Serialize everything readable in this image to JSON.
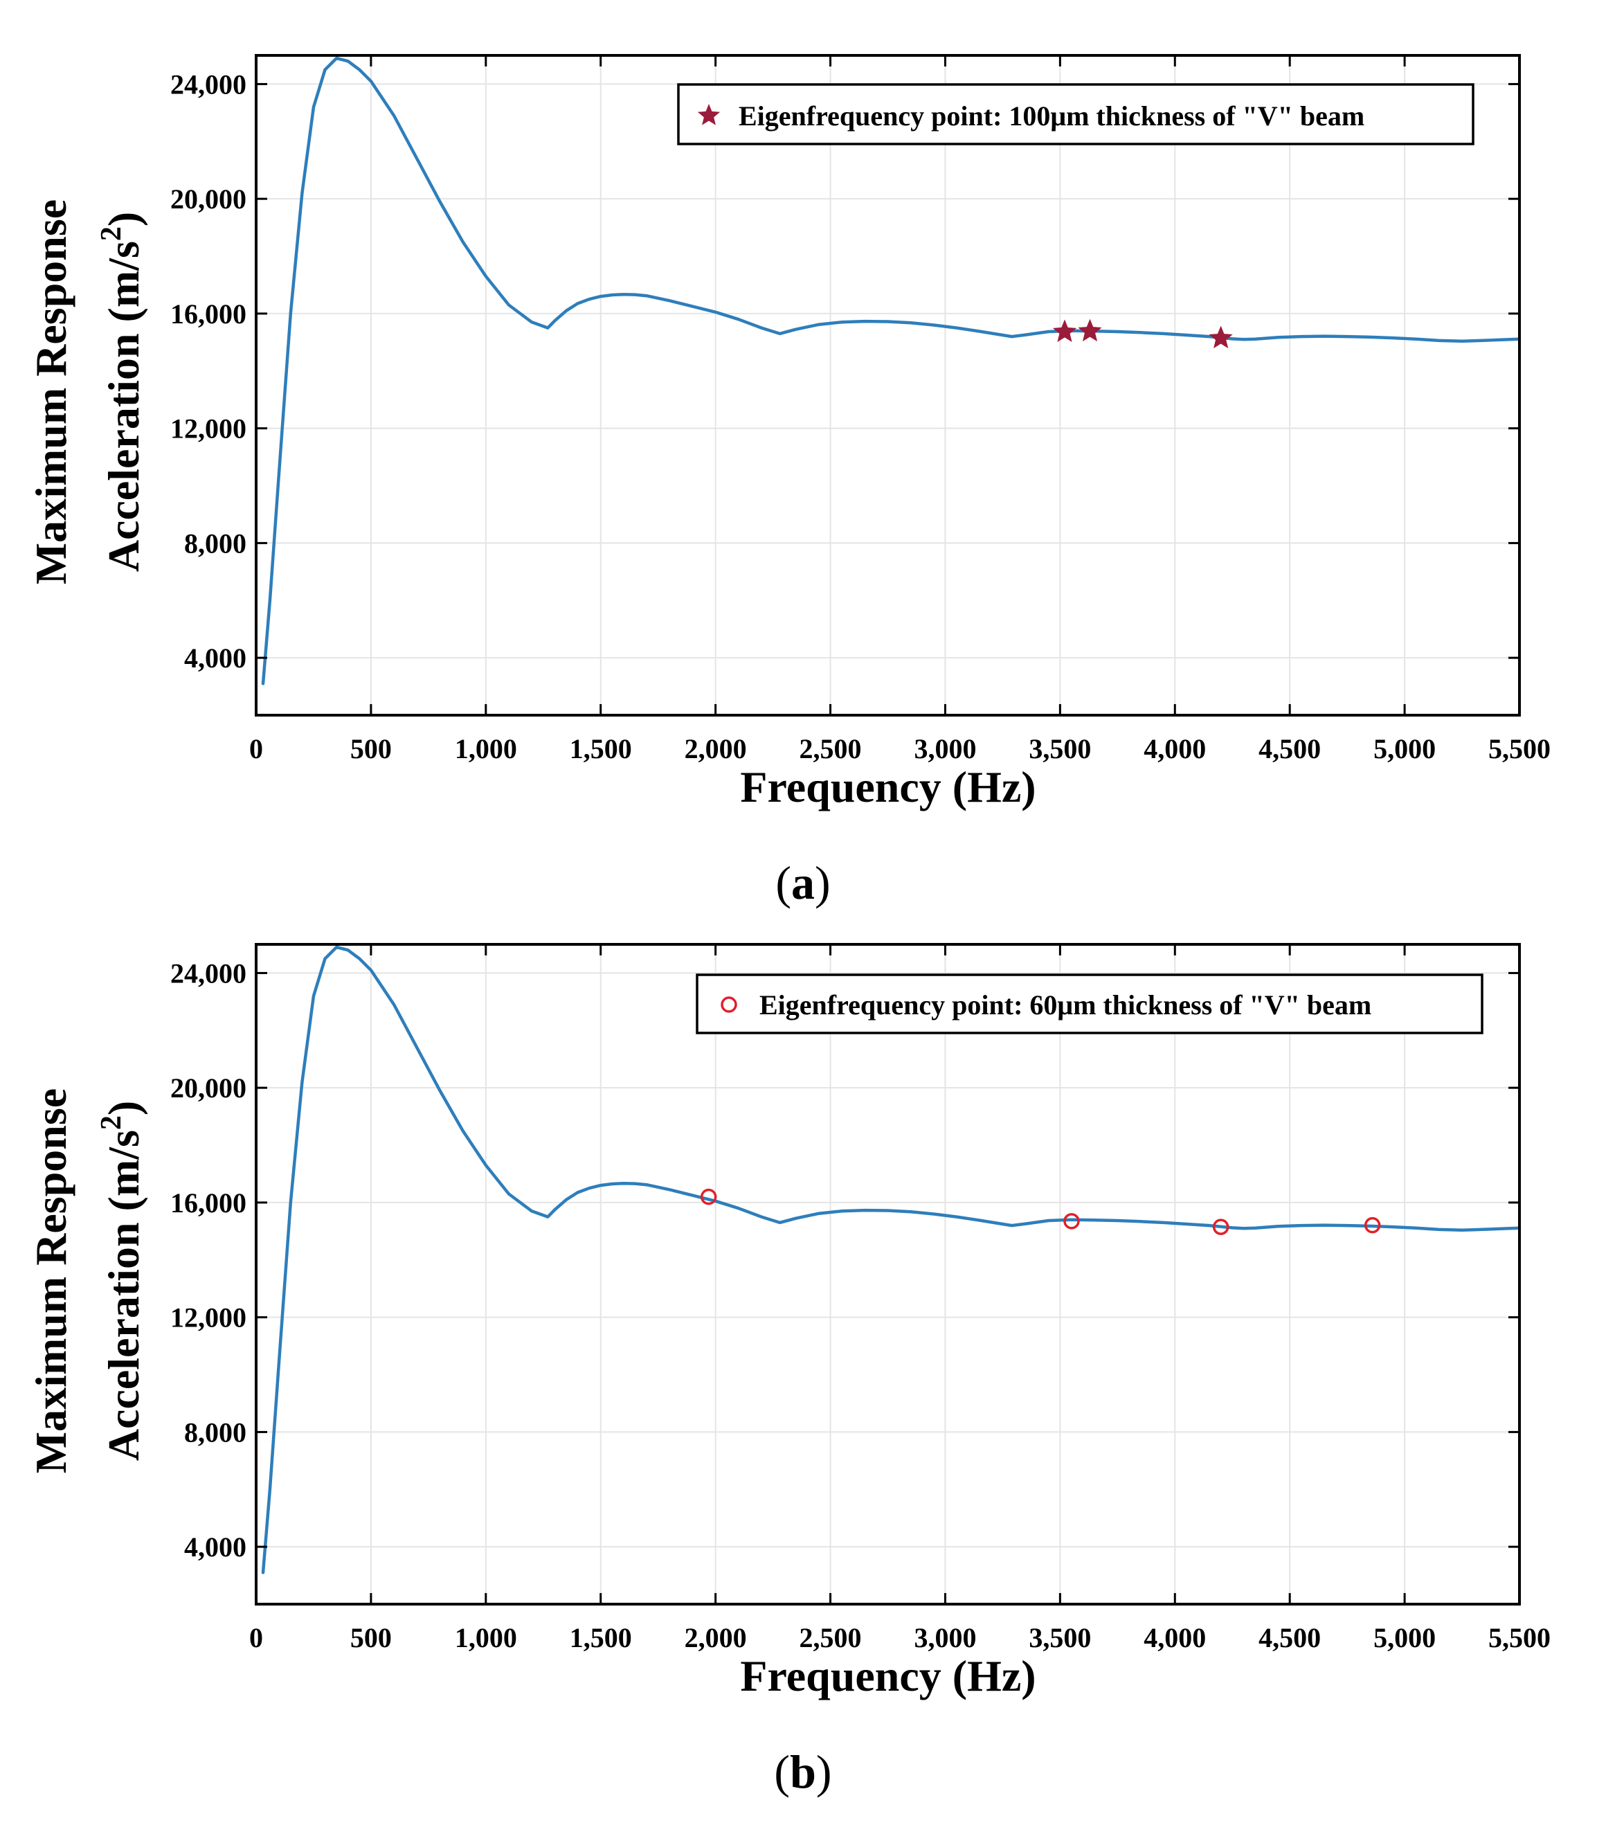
{
  "figure": {
    "colors": {
      "line": "#2E7EBB",
      "star": "#9B1B3A",
      "circle": "#E0202A",
      "grid": "#E4E4E4",
      "axis": "#000000"
    }
  },
  "chart_data": [
    {
      "type": "line",
      "panel_label_open": "(",
      "panel_label_letter": "a",
      "panel_label_close": ")",
      "xlabel": "Frequency (Hz)",
      "ylabel_line1": "Maximum Response",
      "ylabel_line2": "Acceleration (m/s",
      "ylabel_sup": "2",
      "ylabel_close": ")",
      "xlim": [
        0,
        5500
      ],
      "ylim": [
        2000,
        25000
      ],
      "grid": true,
      "legend_position": "top-right",
      "xticks": [
        0,
        500,
        1000,
        1500,
        2000,
        2500,
        3000,
        3500,
        4000,
        4500,
        5000,
        5500
      ],
      "xtick_labels": [
        "0",
        "500",
        "1,000",
        "1,500",
        "2,000",
        "2,500",
        "3,000",
        "3,500",
        "4,000",
        "4,500",
        "5,000",
        "5,500"
      ],
      "yticks": [
        4000,
        8000,
        12000,
        16000,
        20000,
        24000
      ],
      "ytick_labels": [
        "4,000",
        "8,000",
        "12,000",
        "16,000",
        "20,000",
        "24,000"
      ],
      "series": [
        {
          "name": "Maximum response acceleration",
          "x": [
            30,
            60,
            100,
            150,
            200,
            250,
            300,
            350,
            400,
            450,
            500,
            600,
            700,
            800,
            900,
            1000,
            1100,
            1200,
            1270,
            1300,
            1350,
            1400,
            1450,
            1500,
            1550,
            1600,
            1650,
            1700,
            1800,
            1900,
            2000,
            2100,
            2200,
            2280,
            2350,
            2450,
            2550,
            2650,
            2750,
            2850,
            2950,
            3050,
            3150,
            3250,
            3290,
            3350,
            3450,
            3550,
            3650,
            3750,
            3850,
            3950,
            4050,
            4150,
            4250,
            4300,
            4350,
            4450,
            4550,
            4650,
            4750,
            4850,
            4950,
            5050,
            5150,
            5250,
            5300,
            5400,
            5500
          ],
          "y": [
            3100,
            6000,
            10500,
            16000,
            20200,
            23200,
            24500,
            24900,
            24800,
            24500,
            24100,
            22900,
            21400,
            19900,
            18500,
            17300,
            16300,
            15700,
            15500,
            15750,
            16100,
            16350,
            16500,
            16600,
            16650,
            16670,
            16660,
            16620,
            16450,
            16250,
            16050,
            15800,
            15500,
            15300,
            15450,
            15620,
            15700,
            15730,
            15720,
            15680,
            15600,
            15500,
            15380,
            15250,
            15200,
            15260,
            15370,
            15400,
            15390,
            15370,
            15340,
            15300,
            15250,
            15200,
            15120,
            15100,
            15110,
            15170,
            15200,
            15210,
            15200,
            15180,
            15150,
            15110,
            15060,
            15040,
            15050,
            15080,
            15110
          ]
        }
      ],
      "markers": {
        "name": "Eigenfrequency point: 100μm thickness of \"V\" beam",
        "shape": "star",
        "x": [
          3520,
          3630,
          4200
        ],
        "y": [
          15360,
          15380,
          15140
        ]
      }
    },
    {
      "type": "line",
      "panel_label_open": "(",
      "panel_label_letter": "b",
      "panel_label_close": ")",
      "xlabel": "Frequency (Hz)",
      "ylabel_line1": "Maximum Response",
      "ylabel_line2": "Acceleration (m/s",
      "ylabel_sup": "2",
      "ylabel_close": ")",
      "xlim": [
        0,
        5500
      ],
      "ylim": [
        2000,
        25000
      ],
      "grid": true,
      "legend_position": "top-right",
      "xticks": [
        0,
        500,
        1000,
        1500,
        2000,
        2500,
        3000,
        3500,
        4000,
        4500,
        5000,
        5500
      ],
      "xtick_labels": [
        "0",
        "500",
        "1,000",
        "1,500",
        "2,000",
        "2,500",
        "3,000",
        "3,500",
        "4,000",
        "4,500",
        "5,000",
        "5,500"
      ],
      "yticks": [
        4000,
        8000,
        12000,
        16000,
        20000,
        24000
      ],
      "ytick_labels": [
        "4,000",
        "8,000",
        "12,000",
        "16,000",
        "20,000",
        "24,000"
      ],
      "series": [
        {
          "name": "Maximum response acceleration",
          "x": [
            30,
            60,
            100,
            150,
            200,
            250,
            300,
            350,
            400,
            450,
            500,
            600,
            700,
            800,
            900,
            1000,
            1100,
            1200,
            1270,
            1300,
            1350,
            1400,
            1450,
            1500,
            1550,
            1600,
            1650,
            1700,
            1800,
            1900,
            2000,
            2100,
            2200,
            2280,
            2350,
            2450,
            2550,
            2650,
            2750,
            2850,
            2950,
            3050,
            3150,
            3250,
            3290,
            3350,
            3450,
            3550,
            3650,
            3750,
            3850,
            3950,
            4050,
            4150,
            4250,
            4300,
            4350,
            4450,
            4550,
            4650,
            4750,
            4850,
            4950,
            5050,
            5150,
            5250,
            5300,
            5400,
            5500
          ],
          "y": [
            3100,
            6000,
            10500,
            16000,
            20200,
            23200,
            24500,
            24900,
            24800,
            24500,
            24100,
            22900,
            21400,
            19900,
            18500,
            17300,
            16300,
            15700,
            15500,
            15750,
            16100,
            16350,
            16500,
            16600,
            16650,
            16670,
            16660,
            16620,
            16450,
            16250,
            16050,
            15800,
            15500,
            15300,
            15450,
            15620,
            15700,
            15730,
            15720,
            15680,
            15600,
            15500,
            15380,
            15250,
            15200,
            15260,
            15370,
            15400,
            15390,
            15370,
            15340,
            15300,
            15250,
            15200,
            15120,
            15100,
            15110,
            15170,
            15200,
            15210,
            15200,
            15180,
            15150,
            15110,
            15060,
            15040,
            15050,
            15080,
            15110
          ]
        }
      ],
      "markers": {
        "name": "Eigenfrequency point: 60μm thickness of \"V\" beam",
        "shape": "circle",
        "x": [
          1970,
          3550,
          4200,
          4860
        ],
        "y": [
          16200,
          15350,
          15150,
          15210
        ]
      }
    }
  ]
}
